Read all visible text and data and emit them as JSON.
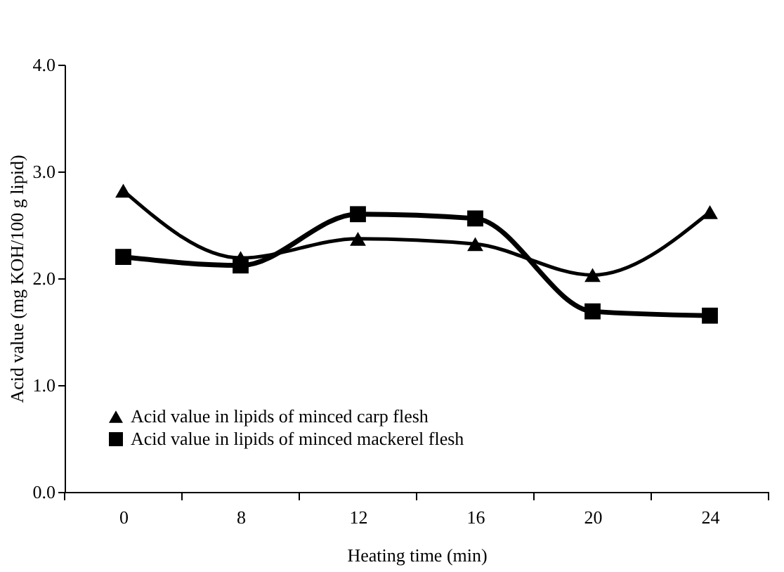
{
  "chart_data": {
    "type": "line",
    "xlabel": "Heating  time (min)",
    "ylabel": "Acid value (mg KOH/100 g lipid)",
    "categories": [
      "0",
      "8",
      "12",
      "16",
      "20",
      "24"
    ],
    "series": [
      {
        "name": "Acid value in lipids of  minced carp flesh",
        "color": "#000000",
        "marker": "triangle",
        "values": [
          2.82,
          2.19,
          2.37,
          2.32,
          2.03,
          2.62
        ]
      },
      {
        "name": "Acid value in lipids of minced mackerel flesh",
        "color": "#000000",
        "marker": "square",
        "values": [
          2.2,
          2.12,
          2.6,
          2.56,
          1.69,
          1.65
        ]
      }
    ],
    "ylim": [
      0,
      4
    ],
    "yticks": [
      {
        "value": 0,
        "label": "0.0"
      },
      {
        "value": 1,
        "label": "1.0"
      },
      {
        "value": 2,
        "label": "2.0"
      },
      {
        "value": 3,
        "label": "3.0"
      },
      {
        "value": 4,
        "label": "4.0"
      }
    ],
    "grid": false,
    "legend": "bottom left",
    "line_style": "solid"
  }
}
